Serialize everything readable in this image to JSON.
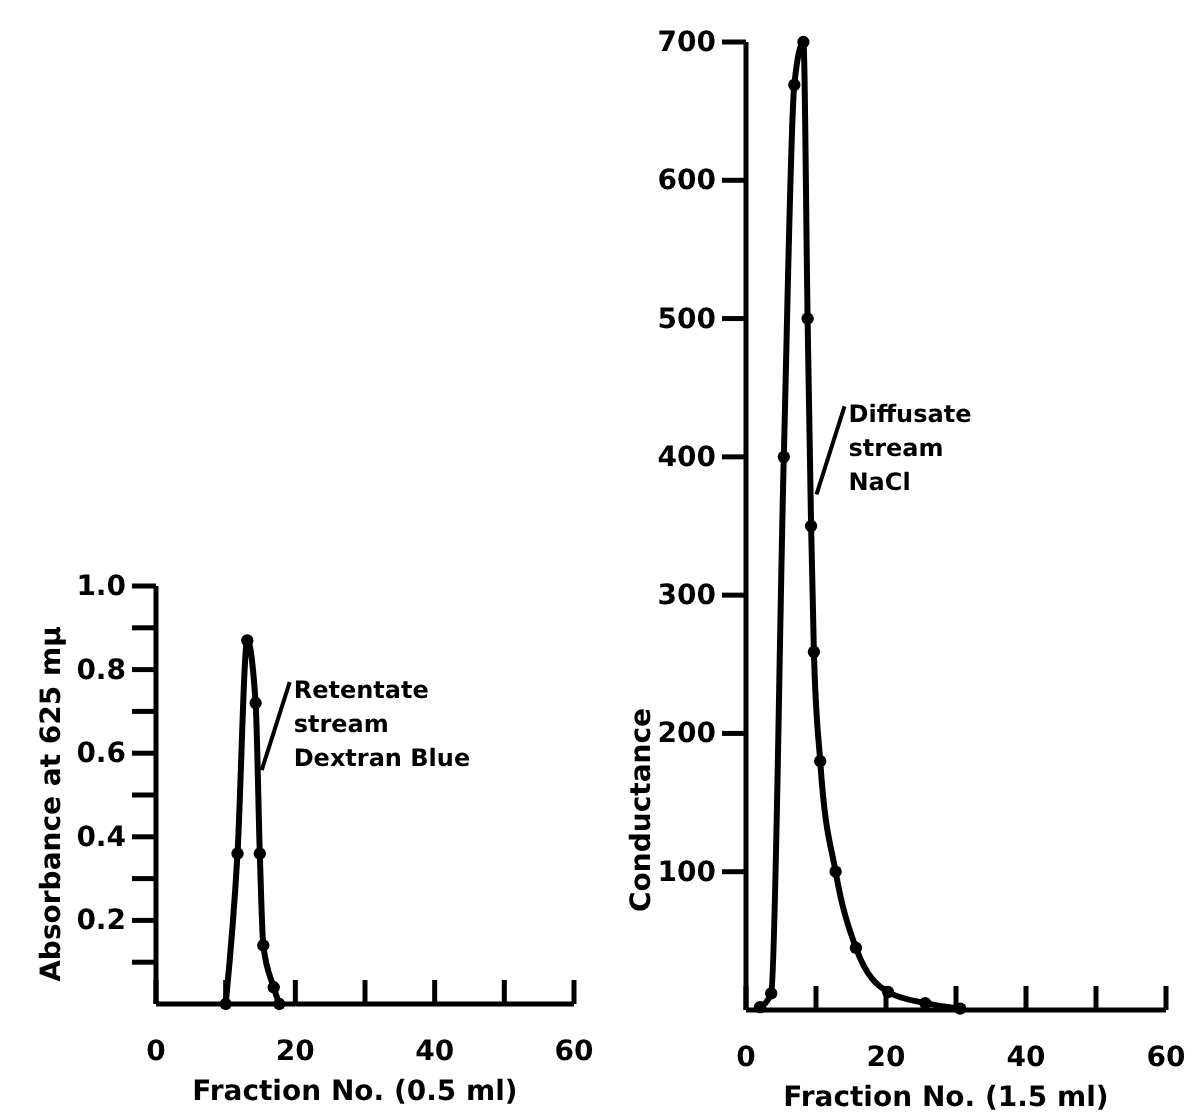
{
  "chart_data": [
    {
      "type": "line",
      "xlabel": "Fraction No. (0.5 ml)",
      "ylabel": "Absorbance at 625 mμ",
      "xlim": [
        0,
        60
      ],
      "ylim": [
        0,
        1.0
      ],
      "xticks": [
        0,
        {
          "value": 10,
          "label": null
        },
        20,
        {
          "value": 30,
          "label": null
        },
        40,
        {
          "value": 50,
          "label": null
        },
        60
      ],
      "yticks": [
        {
          "value": 0.1,
          "label": null
        },
        0.2,
        {
          "value": 0.3,
          "label": null
        },
        0.4,
        {
          "value": 0.5,
          "label": null
        },
        0.6,
        {
          "value": 0.7,
          "label": null
        },
        0.8,
        {
          "value": 0.9,
          "label": null
        },
        "1.0"
      ],
      "marker": "circle",
      "line_style": "solid",
      "grid": false,
      "series": [
        {
          "color": "#000000",
          "x": [
            10,
            11.7,
            13.1,
            14.3,
            14.9,
            15.4,
            16.9,
            17.7
          ],
          "values": [
            0,
            0.36,
            0.87,
            0.72,
            0.36,
            0.14,
            0.04,
            0
          ]
        }
      ],
      "annotations": [
        {
          "text": "Retentate\nstream\nDextran Blue",
          "x": 14.6,
          "y": 0.55
        }
      ]
    },
    {
      "type": "line",
      "xlabel": "Fraction No. (1.5 ml)",
      "ylabel": "Conductance",
      "xlim": [
        0,
        60
      ],
      "ylim": [
        0,
        700
      ],
      "xticks": [
        0,
        {
          "value": 10,
          "label": null
        },
        20,
        {
          "value": 30,
          "label": null
        },
        40,
        {
          "value": 50,
          "label": null
        },
        60
      ],
      "yticks": [
        100,
        200,
        300,
        400,
        500,
        600,
        700
      ],
      "marker": "circle",
      "line_style": "solid",
      "grid": false,
      "series": [
        {
          "color": "#000000",
          "x": [
            2,
            3.6,
            5.4,
            6.9,
            8.2,
            8.8,
            9.3,
            9.7,
            10.6,
            12.8,
            15.7,
            20.3,
            25.6,
            30.6
          ],
          "values": [
            2,
            12,
            400,
            669,
            700,
            500,
            350,
            259,
            180,
            100,
            45,
            13,
            5,
            1
          ]
        }
      ],
      "annotations": [
        {
          "text": "Diffusate\nstream\nNaCl",
          "x": 9.5,
          "y": 370
        }
      ]
    }
  ]
}
